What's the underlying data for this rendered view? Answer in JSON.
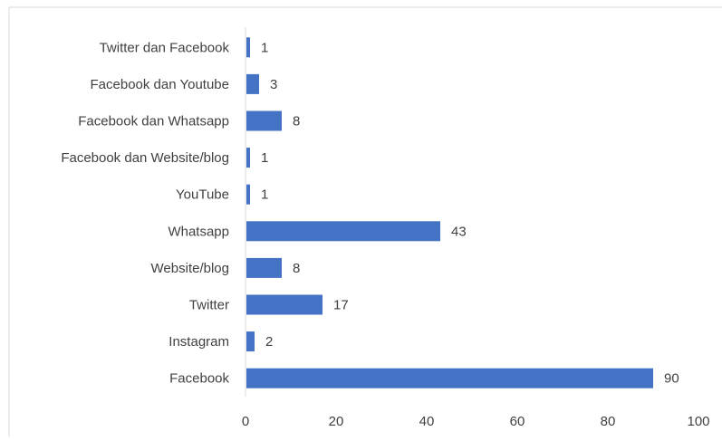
{
  "chart_data": {
    "type": "bar",
    "orientation": "horizontal",
    "categories": [
      "Twitter dan Facebook",
      "Facebook dan Youtube",
      "Facebook dan Whatsapp",
      "Facebook dan Website/blog",
      "YouTube",
      "Whatsapp",
      "Website/blog",
      "Twitter",
      "Instagram",
      "Facebook"
    ],
    "values": [
      1,
      3,
      8,
      1,
      1,
      43,
      8,
      17,
      2,
      90
    ],
    "data_labels": [
      "1",
      "3",
      "8",
      "1",
      "1",
      "43",
      "8",
      "17",
      "2",
      "90"
    ],
    "xlim": [
      0,
      100
    ],
    "x_ticks": [
      0,
      20,
      40,
      60,
      80,
      100
    ],
    "x_tick_labels": [
      "0",
      "20",
      "40",
      "60",
      "80",
      "100"
    ],
    "bar_color": "#4472C4",
    "grid": false,
    "legend": "none"
  }
}
